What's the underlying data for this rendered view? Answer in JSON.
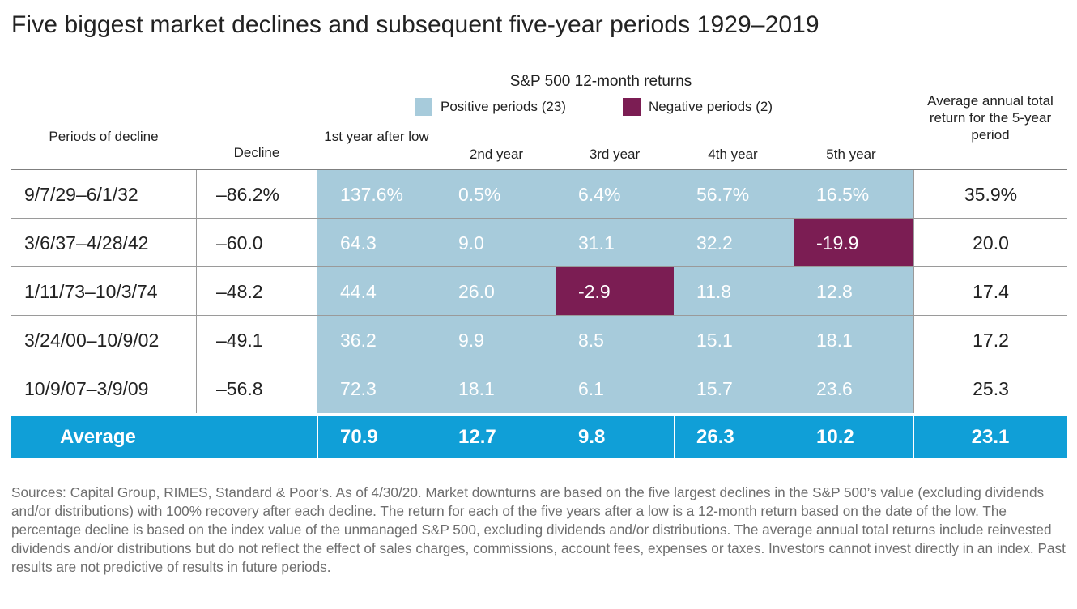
{
  "title": "Five biggest market declines and subsequent five-year periods 1929–2019",
  "chart_data": {
    "type": "table",
    "group_header": "S&P 500 12-month returns",
    "legend": [
      {
        "label": "Positive periods (23)",
        "color": "#a7cbdb"
      },
      {
        "label": "Negative periods (2)",
        "color": "#7b1d53"
      }
    ],
    "columns": {
      "period": "Periods of decline",
      "decline": "Decline",
      "years": [
        "1st year after low",
        "2nd year",
        "3rd year",
        "4th year",
        "5th year"
      ],
      "average": "Average annual total return for the 5-year period"
    },
    "rows": [
      {
        "period": "9/7/29–6/1/32",
        "decline": "–86.2%",
        "years": [
          "137.6%",
          "0.5%",
          "6.4%",
          "56.7%",
          "16.5%"
        ],
        "average": "35.9%"
      },
      {
        "period": "3/6/37–4/28/42",
        "decline": "–60.0",
        "years": [
          "64.3",
          "9.0",
          "31.1",
          "32.2",
          "-19.9"
        ],
        "average": "20.0"
      },
      {
        "period": "1/11/73–10/3/74",
        "decline": "–48.2",
        "years": [
          "44.4",
          "26.0",
          "-2.9",
          "11.8",
          "12.8"
        ],
        "average": "17.4"
      },
      {
        "period": "3/24/00–10/9/02",
        "decline": "–49.1",
        "years": [
          "36.2",
          "9.9",
          "8.5",
          "15.1",
          "18.1"
        ],
        "average": "17.2"
      },
      {
        "period": "10/9/07–3/9/09",
        "decline": "–56.8",
        "years": [
          "72.3",
          "18.1",
          "6.1",
          "15.7",
          "23.6"
        ],
        "average": "25.3"
      }
    ],
    "summary": {
      "label": "Average",
      "years": [
        "70.9",
        "12.7",
        "9.8",
        "26.3",
        "10.2"
      ],
      "average": "23.1"
    }
  },
  "colors": {
    "positive": "#a7cbdb",
    "negative": "#7b1d53",
    "average_row": "#109fd7"
  },
  "sources": "Sources: Capital Group, RIMES, Standard & Poor’s. As of 4/30/20. Market downturns are based on the five largest declines in the S&P 500’s value (excluding dividends and/or distributions) with 100% recovery after each decline. The return for each of the five years after a low is a 12-month return based on the date of the low. The percentage decline is based on the index value of the unmanaged S&P 500, excluding dividends and/or distributions. The average annual total returns include reinvested dividends and/or distributions but do not reflect the effect of sales charges, commissions, account fees, expenses or taxes. Investors cannot invest directly in an index. Past results are not predictive of results in future periods."
}
